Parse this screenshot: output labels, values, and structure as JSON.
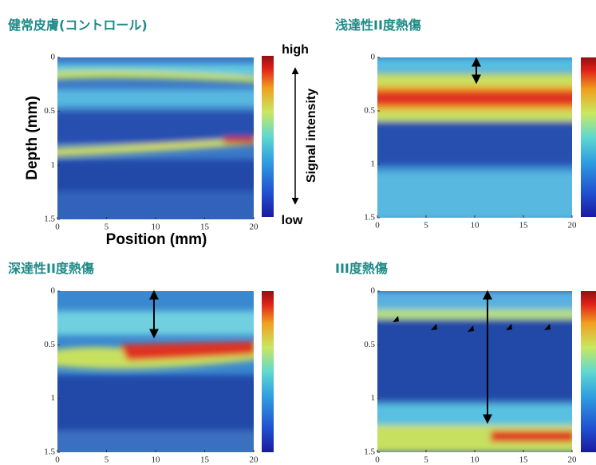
{
  "chart_data": [
    {
      "type": "heatmap",
      "title": "健常皮膚(コントロール)",
      "xlabel": "Position (mm)",
      "ylabel": "Depth (mm)",
      "colorbar_high": "high",
      "colorbar_low": "low",
      "colorbar_label": "Signal intensity",
      "xlim": [
        0,
        20
      ],
      "ylim": [
        0,
        1.5
      ],
      "xticks": [
        0,
        5,
        10,
        15,
        20
      ],
      "yticks": [
        0,
        0.5,
        1,
        1.5
      ]
    },
    {
      "type": "heatmap",
      "title": "浅達性II度熱傷",
      "xlim": [
        0,
        20
      ],
      "ylim": [
        0,
        1.5
      ],
      "xticks": [
        0,
        5,
        10,
        15,
        20
      ],
      "yticks": [
        0,
        0.5,
        1,
        1.5
      ]
    },
    {
      "type": "heatmap",
      "title": "深達性II度熱傷",
      "xlim": [
        0,
        20
      ],
      "ylim": [
        0,
        1.5
      ],
      "xticks": [
        0,
        5,
        10,
        15,
        20
      ],
      "yticks": [
        0,
        0.5,
        1,
        1.5
      ]
    },
    {
      "type": "heatmap",
      "title": "III度熱傷",
      "xlim": [
        0,
        20
      ],
      "ylim": [
        0,
        1.5
      ],
      "xticks": [
        0,
        5,
        10,
        15,
        20
      ],
      "yticks": [
        0,
        0.5,
        1,
        1.5
      ]
    }
  ]
}
